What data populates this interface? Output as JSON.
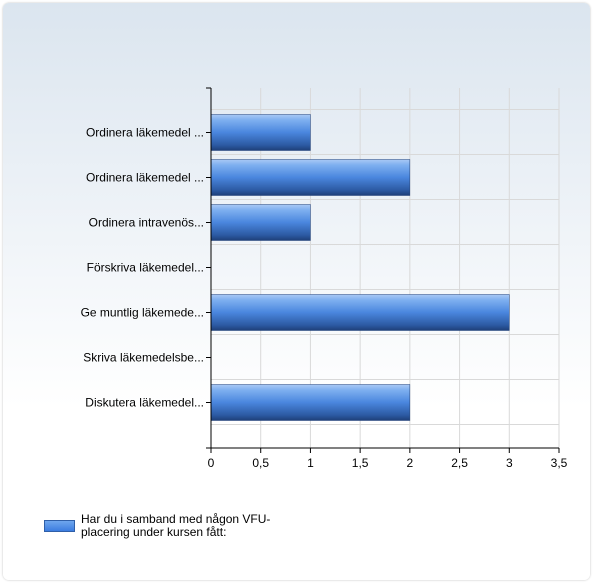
{
  "chart_data": {
    "type": "bar",
    "orientation": "horizontal",
    "categories": [
      "Ordinera läkemedel ...",
      "Ordinera läkemedel ...",
      "Ordinera intravenös...",
      "Förskriva läkemedel...",
      "Ge muntlig läkemede...",
      "Skriva läkemedelsbe...",
      "Diskutera läkemedel..."
    ],
    "series": [
      {
        "name": "Har du i samband med någon VFU-placering under kursen fått:",
        "values": [
          1,
          2,
          1,
          0,
          3,
          0,
          2
        ]
      }
    ],
    "xlim": [
      0,
      3.5
    ],
    "xticks": [
      "0",
      "0,5",
      "1",
      "1,5",
      "2",
      "2,5",
      "3",
      "3,5"
    ],
    "xtick_values": [
      0,
      0.5,
      1,
      1.5,
      2,
      2.5,
      3,
      3.5
    ],
    "grid": true,
    "legend_position": "bottom-left",
    "colors": {
      "bar_top": "#7fb0f0",
      "bar_mid": "#4a86de",
      "bar_bottom": "#1e3f78",
      "grid": "#d9d9d9",
      "axis": "#000000"
    }
  }
}
